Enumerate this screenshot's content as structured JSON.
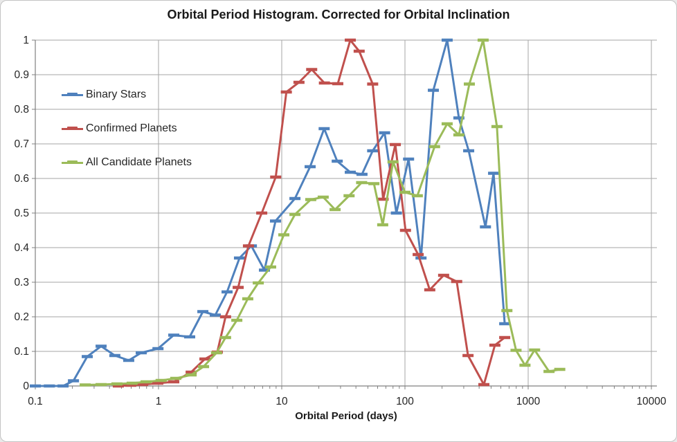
{
  "window": {
    "title": "Orbital Period Histogram. Corrected for Orbital Inclination"
  },
  "chart_data": {
    "type": "line",
    "title": "Orbital Period Histogram. Corrected for Orbital Inclination",
    "xlabel": "Orbital Period (days)",
    "ylabel": "",
    "x_scale": "log",
    "xlim": [
      0.1,
      10000
    ],
    "ylim": [
      0,
      1
    ],
    "x_ticks": [
      0.1,
      1,
      10,
      100,
      1000,
      10000
    ],
    "x_tick_labels": [
      "0.1",
      "1",
      "10",
      "100",
      "1000",
      "10000"
    ],
    "y_ticks": [
      0,
      0.1,
      0.2,
      0.3,
      0.4,
      0.5,
      0.6,
      0.7,
      0.8,
      0.9,
      1
    ],
    "y_tick_labels": [
      "0",
      "0.1",
      "0.2",
      "0.3",
      "0.4",
      "0.5",
      "0.6",
      "0.7",
      "0.8",
      "0.9",
      "1"
    ],
    "grid": true,
    "legend_position": "inside-top-left",
    "marker_style": "horizontal-dash",
    "series": [
      {
        "name": "Binary Stars",
        "color": "#4F81BD",
        "x": [
          0.1,
          0.13,
          0.168,
          0.204,
          0.264,
          0.342,
          0.442,
          0.573,
          0.724,
          0.99,
          1.33,
          1.79,
          2.29,
          2.89,
          3.6,
          4.54,
          5.67,
          7.24,
          8.9,
          12.8,
          17.0,
          22.1,
          28.2,
          36.0,
          44.8,
          54.7,
          68.4,
          85.2,
          107,
          135,
          170,
          220,
          274,
          329,
          450,
          524,
          645
        ],
        "y": [
          0,
          0,
          0,
          0.015,
          0.085,
          0.115,
          0.088,
          0.074,
          0.096,
          0.108,
          0.147,
          0.142,
          0.215,
          0.205,
          0.272,
          0.37,
          0.405,
          0.335,
          0.477,
          0.542,
          0.634,
          0.744,
          0.65,
          0.618,
          0.612,
          0.68,
          0.732,
          0.5,
          0.656,
          0.37,
          0.855,
          1.0,
          0.775,
          0.68,
          0.46,
          0.615,
          0.18
        ]
      },
      {
        "name": "Confirmed Planets",
        "color": "#C0504D",
        "x": [
          0.472,
          0.596,
          0.743,
          0.987,
          1.33,
          1.84,
          2.38,
          3.0,
          3.5,
          4.43,
          5.37,
          6.88,
          8.93,
          10.9,
          13.8,
          17.5,
          22.2,
          28.5,
          36.0,
          42.5,
          54.7,
          66.5,
          83.5,
          101,
          128,
          159,
          206,
          263,
          325,
          437,
          537,
          645
        ],
        "y": [
          0.0,
          0.002,
          0.004,
          0.008,
          0.012,
          0.04,
          0.078,
          0.098,
          0.2,
          0.285,
          0.405,
          0.5,
          0.604,
          0.85,
          0.878,
          0.915,
          0.876,
          0.874,
          1.0,
          0.968,
          0.873,
          0.54,
          0.698,
          0.45,
          0.38,
          0.278,
          0.32,
          0.302,
          0.088,
          0.004,
          0.118,
          0.14
        ]
      },
      {
        "name": "All Candidate Planets",
        "color": "#9BBB59",
        "x": [
          0.254,
          0.342,
          0.46,
          0.611,
          0.792,
          1.05,
          1.38,
          1.84,
          2.32,
          2.96,
          3.5,
          4.32,
          5.3,
          6.45,
          8.13,
          10.4,
          12.8,
          17.2,
          21.7,
          27.1,
          35.2,
          44.5,
          56.0,
          66.0,
          80.0,
          100,
          126,
          174,
          220,
          274,
          333,
          431,
          558,
          672,
          797,
          942,
          1128,
          1477,
          1805
        ],
        "y": [
          0.003,
          0.004,
          0.006,
          0.008,
          0.012,
          0.016,
          0.022,
          0.032,
          0.056,
          0.096,
          0.14,
          0.19,
          0.252,
          0.298,
          0.344,
          0.437,
          0.496,
          0.539,
          0.546,
          0.51,
          0.55,
          0.588,
          0.585,
          0.466,
          0.648,
          0.56,
          0.55,
          0.692,
          0.758,
          0.726,
          0.873,
          1.0,
          0.75,
          0.218,
          0.103,
          0.06,
          0.104,
          0.042,
          0.048
        ]
      }
    ]
  },
  "colors": {
    "background": "#FFFFFF",
    "gridline": "#A6A6A6",
    "axis": "#7F7F7F",
    "tick": "#7F7F7F",
    "text": "#262626",
    "frame_border": "#C3C3C3"
  }
}
